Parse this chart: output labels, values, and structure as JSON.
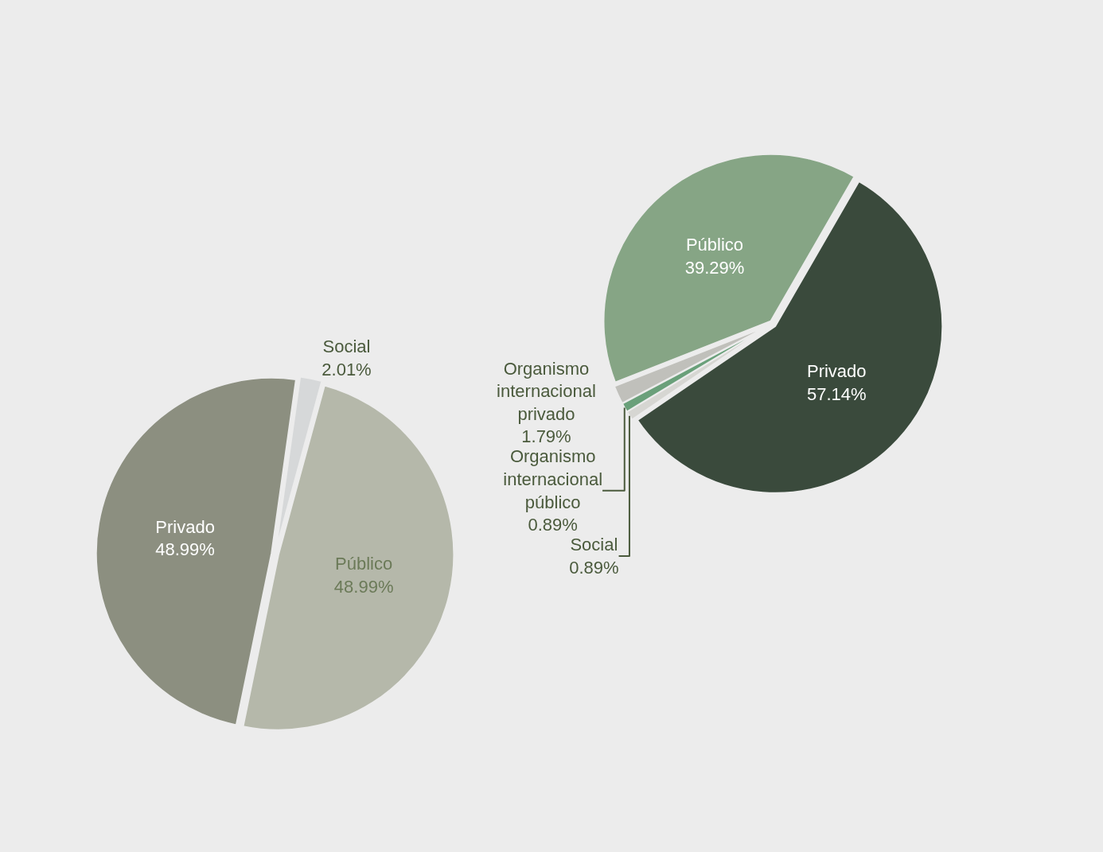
{
  "chart_data": [
    {
      "type": "pie",
      "categories": [
        "Social",
        "Público",
        "Privado"
      ],
      "values": [
        2.01,
        48.99,
        48.99
      ],
      "colors": [
        "#d6d8d9",
        "#b5b8aa",
        "#8c8f80"
      ],
      "value_labels": [
        "2.01%",
        "48.99%",
        "48.99%"
      ],
      "legend": false
    },
    {
      "type": "pie",
      "categories": [
        "Privado",
        "Social",
        "Organismo internacional público",
        "Organismo internacional privado",
        "Público"
      ],
      "values": [
        57.14,
        0.89,
        0.89,
        1.79,
        39.29
      ],
      "colors": [
        "#3a4a3c",
        "#d6d6d2",
        "#6aa07a",
        "#c0c0bb",
        "#86a585"
      ],
      "value_labels": [
        "57.14%",
        "0.89%",
        "0.89%",
        "1.79%",
        "39.29%"
      ],
      "legend": false
    }
  ]
}
